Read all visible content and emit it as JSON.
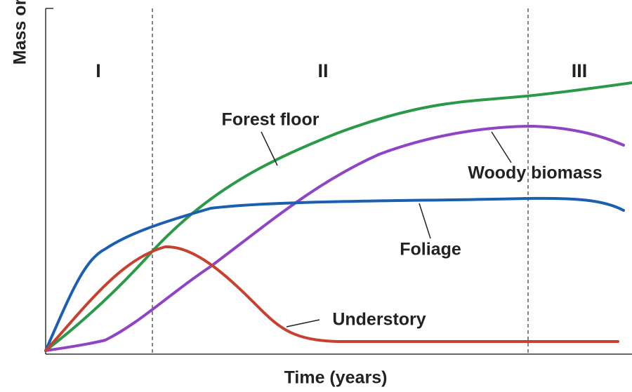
{
  "diagram": {
    "y_axis_label": "Mass or",
    "x_axis_label": "Time (years)",
    "phases": [
      "I",
      "II",
      "III"
    ],
    "curves": [
      "Forest floor",
      "Woody biomass",
      "Foliage",
      "Understory"
    ]
  }
}
